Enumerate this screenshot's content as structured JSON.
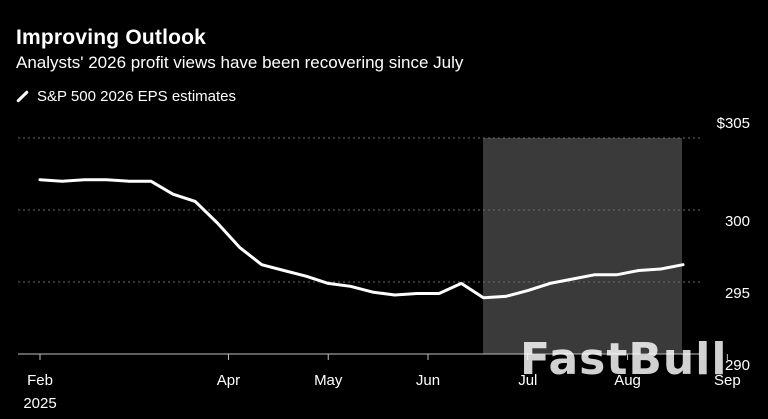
{
  "header": {
    "title": "Improving Outlook",
    "subtitle": "Analysts' 2026 profit views have been recovering since July"
  },
  "legend": {
    "label": "S&P 500 2026 EPS estimates"
  },
  "watermark": "FastBull",
  "colors": {
    "background": "#000000",
    "line": "#ffffff",
    "highlight": "#3a3a3a",
    "grid": "#6e6e6e"
  },
  "chart_data": {
    "type": "line",
    "title": "Improving Outlook",
    "subtitle": "Analysts' 2026 profit views have been recovering since July",
    "xlabel": "",
    "ylabel": "",
    "ylim": [
      290,
      305
    ],
    "y_ticks": [
      {
        "value": 305,
        "label": "$305"
      },
      {
        "value": 300,
        "label": "300"
      },
      {
        "value": 295,
        "label": "295"
      },
      {
        "value": 290,
        "label": "290"
      }
    ],
    "x_ticks": [
      {
        "week": 0,
        "label": "Feb",
        "sublabel": "2025"
      },
      {
        "week": 8.5,
        "label": "Apr",
        "sublabel": ""
      },
      {
        "week": 13,
        "label": "May",
        "sublabel": ""
      },
      {
        "week": 17.5,
        "label": "Jun",
        "sublabel": ""
      },
      {
        "week": 22,
        "label": "Jul",
        "sublabel": ""
      },
      {
        "week": 26.5,
        "label": "Aug",
        "sublabel": ""
      },
      {
        "week": 31,
        "label": "Sep",
        "sublabel": ""
      }
    ],
    "highlight_range": [
      21,
      30.5
    ],
    "grid": true,
    "series": [
      {
        "name": "S&P 500 2026 EPS estimates",
        "points": [
          {
            "x": 0,
            "y": 302.1
          },
          {
            "x": 1,
            "y": 302.0
          },
          {
            "x": 2,
            "y": 302.1
          },
          {
            "x": 3,
            "y": 302.1
          },
          {
            "x": 4,
            "y": 302.0
          },
          {
            "x": 5,
            "y": 302.0
          },
          {
            "x": 6,
            "y": 301.1
          },
          {
            "x": 7,
            "y": 300.6
          },
          {
            "x": 8,
            "y": 299.1
          },
          {
            "x": 9,
            "y": 297.4
          },
          {
            "x": 10,
            "y": 296.2
          },
          {
            "x": 11,
            "y": 295.8
          },
          {
            "x": 12,
            "y": 295.4
          },
          {
            "x": 13,
            "y": 294.9
          },
          {
            "x": 14,
            "y": 294.7
          },
          {
            "x": 15,
            "y": 294.3
          },
          {
            "x": 16,
            "y": 294.1
          },
          {
            "x": 17,
            "y": 294.2
          },
          {
            "x": 18,
            "y": 294.2
          },
          {
            "x": 19,
            "y": 294.9
          },
          {
            "x": 20,
            "y": 293.9
          },
          {
            "x": 21,
            "y": 294.0
          },
          {
            "x": 22,
            "y": 294.4
          },
          {
            "x": 23,
            "y": 294.9
          },
          {
            "x": 24,
            "y": 295.2
          },
          {
            "x": 25,
            "y": 295.5
          },
          {
            "x": 26,
            "y": 295.5
          },
          {
            "x": 27,
            "y": 295.8
          },
          {
            "x": 28,
            "y": 295.9
          },
          {
            "x": 29,
            "y": 296.2
          }
        ]
      }
    ]
  }
}
